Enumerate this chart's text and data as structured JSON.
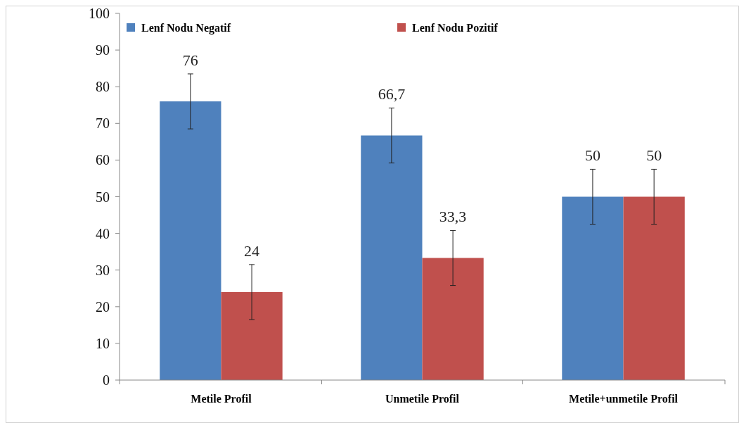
{
  "chart_data": {
    "type": "bar",
    "categories": [
      "Metile Profil",
      "Unmetile Profil",
      "Metile+unmetile Profil"
    ],
    "series": [
      {
        "name": "Lenf Nodu Negatif",
        "color": "#4f81bd",
        "values": [
          76,
          66.7,
          50
        ],
        "errors": [
          7.5,
          7.5,
          7.5
        ],
        "value_labels": [
          "76",
          "66,7",
          "50"
        ]
      },
      {
        "name": "Lenf Nodu Pozitif",
        "color": "#c0504d",
        "values": [
          24,
          33.3,
          50
        ],
        "errors": [
          7.5,
          7.5,
          7.5
        ],
        "value_labels": [
          "24",
          "33,3",
          "50"
        ]
      }
    ],
    "ylim": [
      0,
      100
    ],
    "yticks": [
      0,
      10,
      20,
      30,
      40,
      50,
      60,
      70,
      80,
      90,
      100
    ],
    "grid": false,
    "legend": "top"
  }
}
